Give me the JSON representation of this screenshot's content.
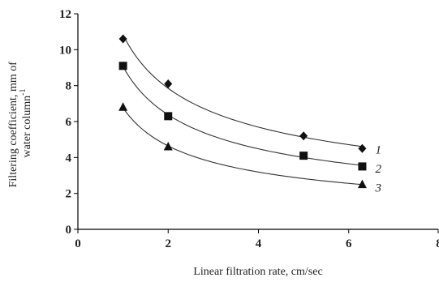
{
  "chart_data": {
    "type": "scatter",
    "title": "",
    "xlabel": "Linear filtration rate, cm/sec",
    "ylabel_lines": [
      "Filtering coefficient, mm of",
      "water column"
    ],
    "ylabel_superscript": "-1",
    "xlim": [
      0,
      8
    ],
    "ylim": [
      0,
      12
    ],
    "xticks": [
      "0",
      "2",
      "4",
      "6",
      "8"
    ],
    "yticks": [
      "0",
      "2",
      "4",
      "6",
      "8",
      "10",
      "12"
    ],
    "grid": false,
    "legend": "none",
    "series": [
      {
        "label": "1",
        "marker": "diamond",
        "color": "#111111",
        "x": [
          1,
          2,
          5,
          6.3
        ],
        "y": [
          10.6,
          8.1,
          5.2,
          4.5
        ]
      },
      {
        "label": "2",
        "marker": "square",
        "color": "#111111",
        "x": [
          1,
          2,
          5,
          6.3
        ],
        "y": [
          9.1,
          6.3,
          4.1,
          3.5
        ]
      },
      {
        "label": "3",
        "marker": "triangle",
        "color": "#111111",
        "x": [
          1,
          2,
          6.3
        ],
        "y": [
          6.8,
          4.6,
          2.5
        ]
      }
    ]
  }
}
